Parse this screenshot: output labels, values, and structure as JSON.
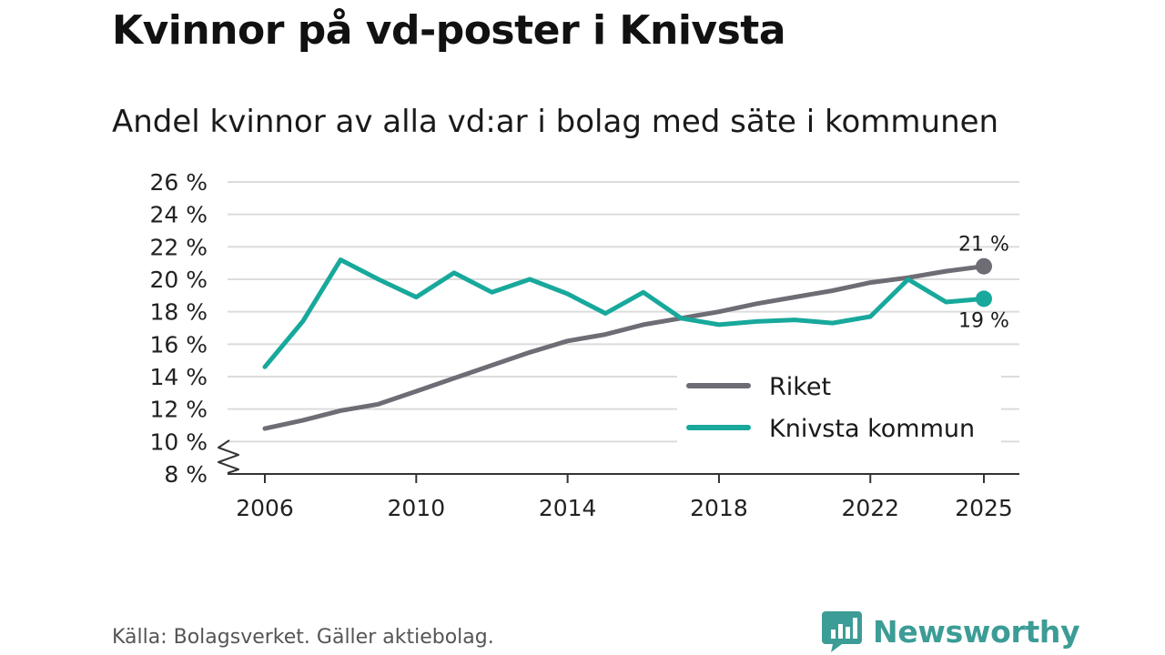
{
  "title": "Kvinnor på vd-poster i Knivsta",
  "subtitle": "Andel kvinnor av alla vd:ar i bolag med säte i kommunen",
  "source": "Källa: Bolagsverket. Gäller aktiebolag.",
  "brand": {
    "name": "Newsworthy",
    "icon": "newsworthy-logo-icon"
  },
  "colors": {
    "riket": "#6e6c74",
    "knivsta": "#18a89c",
    "grid": "#dcdcdc",
    "axis": "#333333",
    "brand": "#3c9c96"
  },
  "chart_data": {
    "type": "line",
    "title": "Kvinnor på vd-poster i Knivsta",
    "subtitle": "Andel kvinnor av alla vd:ar i bolag med säte i kommunen",
    "xlabel": "",
    "ylabel": "",
    "xlim": [
      2006,
      2025
    ],
    "ylim": [
      8,
      26
    ],
    "y_axis_break": true,
    "grid": true,
    "legend_position": "bottom-right",
    "yticks": [
      8,
      10,
      12,
      14,
      16,
      18,
      20,
      22,
      24,
      26
    ],
    "ytick_labels": [
      "8 %",
      "10 %",
      "12 %",
      "14 %",
      "16 %",
      "18 %",
      "20 %",
      "22 %",
      "24 %",
      "26 %"
    ],
    "xticks": [
      2006,
      2010,
      2014,
      2018,
      2022,
      2025
    ],
    "xtick_labels": [
      "2006",
      "2010",
      "2014",
      "2018",
      "2022",
      "2025"
    ],
    "x": [
      2006,
      2007,
      2008,
      2009,
      2010,
      2011,
      2012,
      2013,
      2014,
      2015,
      2016,
      2017,
      2018,
      2019,
      2020,
      2021,
      2022,
      2023,
      2024,
      2025
    ],
    "series": [
      {
        "name": "Riket",
        "color": "#6e6c74",
        "values": [
          10.8,
          11.3,
          11.9,
          12.3,
          13.1,
          13.9,
          14.7,
          15.5,
          16.2,
          16.6,
          17.2,
          17.6,
          18.0,
          18.5,
          18.9,
          19.3,
          19.8,
          20.1,
          20.5,
          20.8
        ],
        "end_label": "21 %"
      },
      {
        "name": "Knivsta kommun",
        "color": "#18a89c",
        "values": [
          14.6,
          17.4,
          21.2,
          20.0,
          18.9,
          20.4,
          19.2,
          20.0,
          19.1,
          17.9,
          19.2,
          17.6,
          17.2,
          17.4,
          17.5,
          17.3,
          17.7,
          20.0,
          18.6,
          18.8
        ],
        "end_label": "19 %"
      }
    ]
  }
}
